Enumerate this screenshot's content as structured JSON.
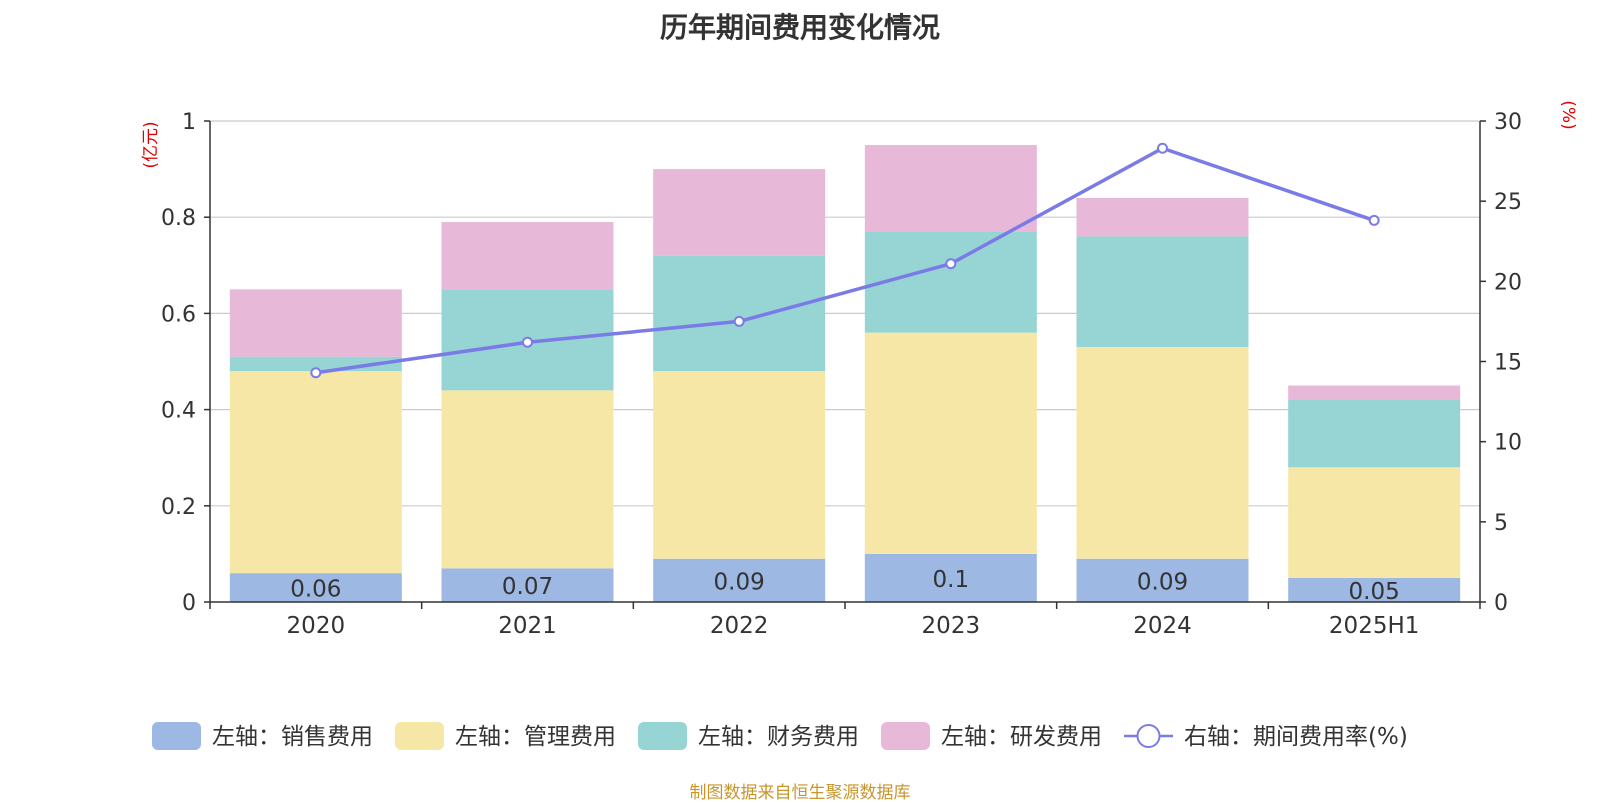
{
  "chart_data": {
    "type": "bar",
    "stacked": true,
    "title": "历年期间费用变化情况",
    "categories": [
      "2020",
      "2021",
      "2022",
      "2023",
      "2024",
      "2025H1"
    ],
    "left_axis": {
      "label": "(亿元)",
      "ylim": [
        0,
        1
      ],
      "ticks": [
        "0",
        "0.2",
        "0.4",
        "0.6",
        "0.8",
        "1"
      ]
    },
    "right_axis": {
      "label": "(%)",
      "ylim": [
        0,
        30
      ],
      "ticks": [
        "0",
        "5",
        "10",
        "15",
        "20",
        "25",
        "30"
      ]
    },
    "series": [
      {
        "name": "左轴：销售费用",
        "axis": "left",
        "type": "bar",
        "color": "#9db8e2",
        "values": [
          0.06,
          0.07,
          0.09,
          0.1,
          0.09,
          0.05
        ],
        "data_labels": [
          "0.06",
          "0.07",
          "0.09",
          "0.1",
          "0.09",
          "0.05"
        ]
      },
      {
        "name": "左轴：管理费用",
        "axis": "left",
        "type": "bar",
        "color": "#f7e7a7",
        "values": [
          0.42,
          0.37,
          0.39,
          0.46,
          0.44,
          0.23
        ]
      },
      {
        "name": "左轴：财务费用",
        "axis": "left",
        "type": "bar",
        "color": "#97d4d4",
        "values": [
          0.03,
          0.21,
          0.24,
          0.21,
          0.23,
          0.14
        ]
      },
      {
        "name": "左轴：研发费用",
        "axis": "left",
        "type": "bar",
        "color": "#e7b8d8",
        "values": [
          0.14,
          0.14,
          0.18,
          0.18,
          0.08,
          0.03
        ]
      },
      {
        "name": "右轴：期间费用率(%)",
        "axis": "right",
        "type": "line",
        "color": "#7b7be8",
        "values": [
          14.3,
          16.2,
          17.5,
          21.1,
          28.3,
          23.8
        ]
      }
    ],
    "grid": true,
    "legend_position": "bottom",
    "label_color": "#e00000"
  },
  "source_note": "制图数据来自恒生聚源数据库"
}
